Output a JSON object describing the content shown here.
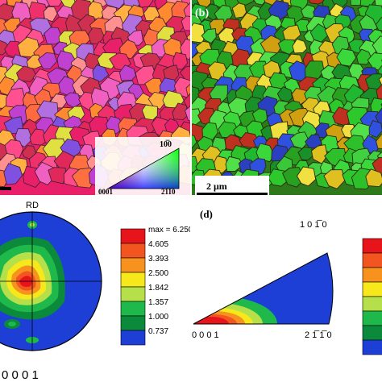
{
  "figure": {
    "panel_b_label": "(b)",
    "panel_d_label": "(d)",
    "scale_bar": "2 μm",
    "ipf_key": {
      "corner_top": "10̅0",
      "corner_left": "0001",
      "corner_right": "2̅1̅1̅0"
    },
    "pole_figure": {
      "direction": "RD",
      "plane": "0 0 0 1"
    },
    "inverse_pole_figure": {
      "corner_top": "1 0 1̅ 0",
      "corner_left": "0 0 0 1",
      "corner_right": "2 1̅ 1̅ 0"
    },
    "colorbar": {
      "levels": [
        "max = 6.250",
        "4.605",
        "3.393",
        "2.500",
        "1.842",
        "1.357",
        "1.000",
        "0.737"
      ],
      "colors": [
        "#e8141c",
        "#f25520",
        "#f7921e",
        "#f6e81b",
        "#b6e04a",
        "#1fb84a",
        "#0a8a3a",
        "#1d3fd6"
      ]
    }
  }
}
